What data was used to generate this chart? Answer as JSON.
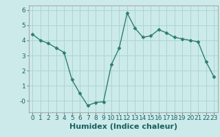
{
  "x": [
    0,
    1,
    2,
    3,
    4,
    5,
    6,
    7,
    8,
    9,
    10,
    11,
    12,
    13,
    14,
    15,
    16,
    17,
    18,
    19,
    20,
    21,
    22,
    23
  ],
  "y": [
    4.4,
    4.0,
    3.8,
    3.5,
    3.2,
    1.4,
    0.5,
    -0.3,
    -0.1,
    -0.05,
    2.4,
    3.5,
    5.8,
    4.8,
    4.2,
    4.3,
    4.7,
    4.5,
    4.2,
    4.1,
    4.0,
    3.9,
    2.6,
    1.6
  ],
  "line_color": "#2d7d6d",
  "marker": "D",
  "markersize": 2.5,
  "linewidth": 1.0,
  "bg_color": "#cceaea",
  "grid_color": "#aad4d4",
  "xlabel": "Humidex (Indice chaleur)",
  "xlabel_fontsize": 8,
  "xlim": [
    -0.5,
    23.5
  ],
  "ylim": [
    -0.75,
    6.3
  ],
  "yticks": [
    0,
    1,
    2,
    3,
    4,
    5,
    6
  ],
  "ytick_labels": [
    "-0",
    "1",
    "2",
    "3",
    "4",
    "5",
    "6"
  ],
  "xticks": [
    0,
    1,
    2,
    3,
    4,
    5,
    6,
    7,
    8,
    9,
    10,
    11,
    12,
    13,
    14,
    15,
    16,
    17,
    18,
    19,
    20,
    21,
    22,
    23
  ],
  "tick_fontsize": 6.5,
  "spine_color": "#aaaaaa"
}
